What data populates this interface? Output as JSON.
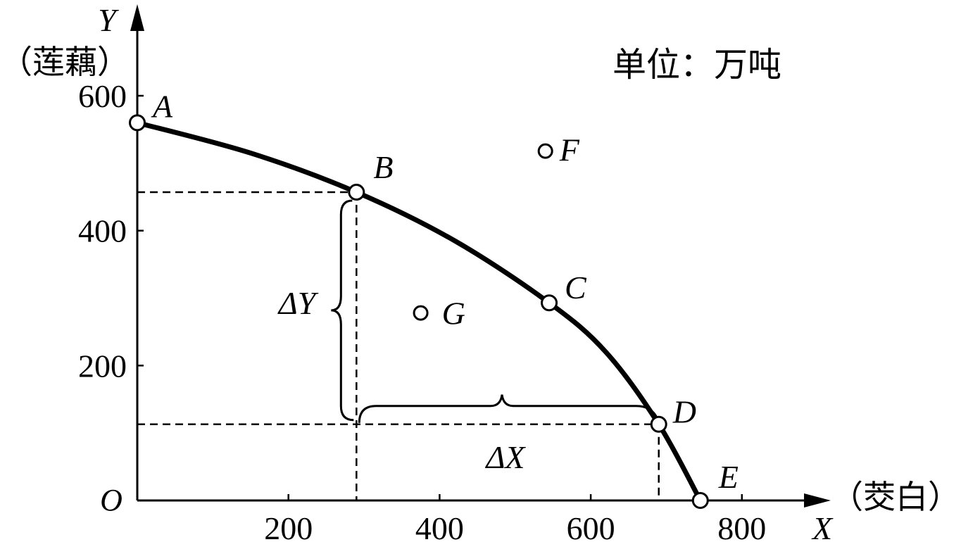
{
  "chart_data": {
    "type": "line",
    "title": "",
    "xlabel": "X",
    "ylabel": "Y",
    "x_unit_label": "（茭白）",
    "y_unit_label": "（莲藕）",
    "unit_note": "单位：万吨",
    "origin_label": "O",
    "xlim": [
      0,
      900
    ],
    "ylim": [
      0,
      640
    ],
    "x_ticks": [
      200,
      400,
      600,
      800
    ],
    "y_ticks": [
      200,
      400,
      600
    ],
    "grid": false,
    "series": [
      {
        "points": [
          {
            "x": 0,
            "y": 560
          },
          {
            "x": 150,
            "y": 515
          },
          {
            "x": 290,
            "y": 457
          },
          {
            "x": 420,
            "y": 385
          },
          {
            "x": 545,
            "y": 293
          },
          {
            "x": 620,
            "y": 220
          },
          {
            "x": 690,
            "y": 113
          },
          {
            "x": 745,
            "y": 0
          }
        ]
      }
    ],
    "labeled_points": [
      {
        "label": "A",
        "x": 0,
        "y": 560
      },
      {
        "label": "B",
        "x": 290,
        "y": 457
      },
      {
        "label": "C",
        "x": 545,
        "y": 293
      },
      {
        "label": "D",
        "x": 690,
        "y": 113
      },
      {
        "label": "E",
        "x": 745,
        "y": 0
      },
      {
        "label": "F",
        "x": 540,
        "y": 518
      },
      {
        "label": "G",
        "x": 375,
        "y": 278
      }
    ],
    "annotations": {
      "delta_y": "ΔY",
      "delta_x": "ΔX"
    }
  }
}
